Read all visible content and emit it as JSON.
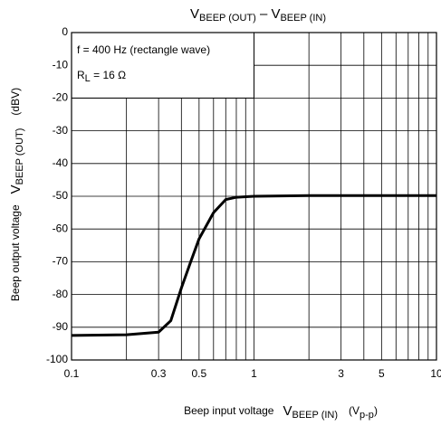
{
  "chart_data": {
    "type": "line",
    "title": [
      "V",
      "BEEP (OUT)",
      " – V",
      "BEEP (IN)"
    ],
    "x_label": [
      "Beep input voltage",
      "V",
      "BEEP (IN)",
      "(V",
      "p-p",
      ")"
    ],
    "y_label": [
      "Beep output voltage",
      "V",
      "BEEP (OUT)",
      "(dBV)"
    ],
    "annotations": [
      "f = 400 Hz (rectangle wave)",
      "R",
      "L",
      " = 16 Ω"
    ],
    "log_x": true,
    "grid": true,
    "xlim": [
      0.1,
      10
    ],
    "ylim": [
      -100,
      0
    ],
    "xticks": [
      0.1,
      0.3,
      0.5,
      1,
      3,
      5,
      10
    ],
    "xminor": [
      0.2,
      0.4,
      0.6,
      0.7,
      0.8,
      0.9,
      2,
      4,
      6,
      7,
      8,
      9
    ],
    "yticks": [
      0,
      -10,
      -20,
      -30,
      -40,
      -50,
      -60,
      -70,
      -80,
      -90,
      -100
    ],
    "series": [
      {
        "color": "#000000",
        "x": [
          0.1,
          0.2,
          0.3,
          0.35,
          0.4,
          0.45,
          0.5,
          0.6,
          0.7,
          0.8,
          1,
          2,
          5,
          10
        ],
        "values": [
          -92.5,
          -92.3,
          -91.5,
          -88,
          -78,
          -70,
          -63,
          -55,
          -51,
          -50.3,
          -50,
          -49.8,
          -49.8,
          -49.8
        ]
      }
    ]
  }
}
